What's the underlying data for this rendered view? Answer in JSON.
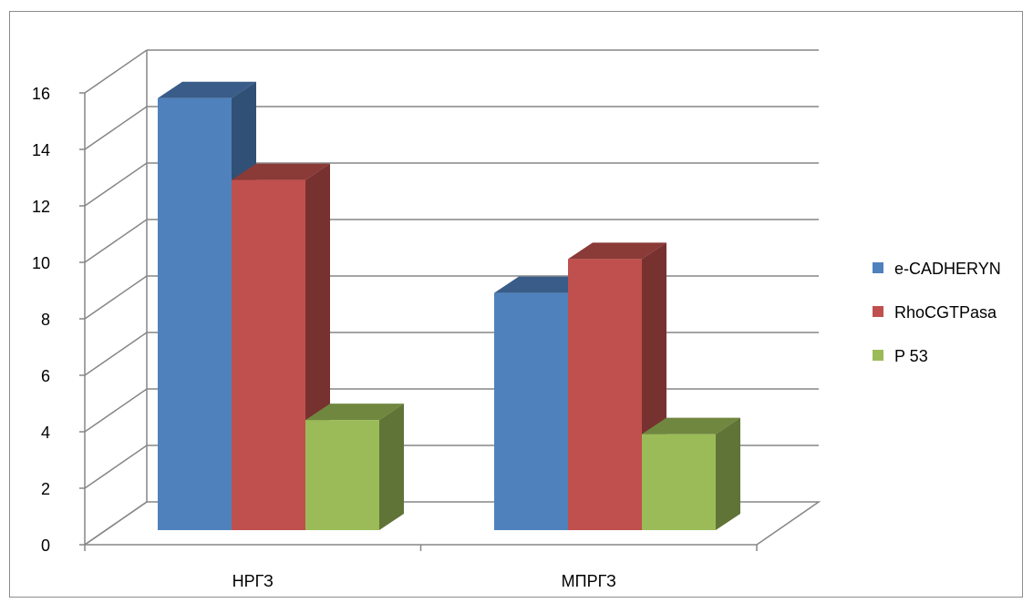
{
  "chart_data": {
    "type": "bar",
    "style": "3d-clustered-column",
    "categories": [
      "НРГЗ",
      "МПРГЗ"
    ],
    "series": [
      {
        "name": "e-CADHERYN",
        "values": [
          15.3,
          8.4
        ],
        "color": "#4f81bd"
      },
      {
        "name": "RhoCGTPasa",
        "values": [
          12.4,
          9.6
        ],
        "color": "#c0504d"
      },
      {
        "name": "P 53",
        "values": [
          3.9,
          3.4
        ],
        "color": "#9bbb59"
      }
    ],
    "y_ticks": [
      "0",
      "2",
      "4",
      "6",
      "8",
      "10",
      "12",
      "14",
      "16"
    ],
    "ylim": [
      0,
      16
    ],
    "grid": true,
    "legend_position": "right"
  }
}
